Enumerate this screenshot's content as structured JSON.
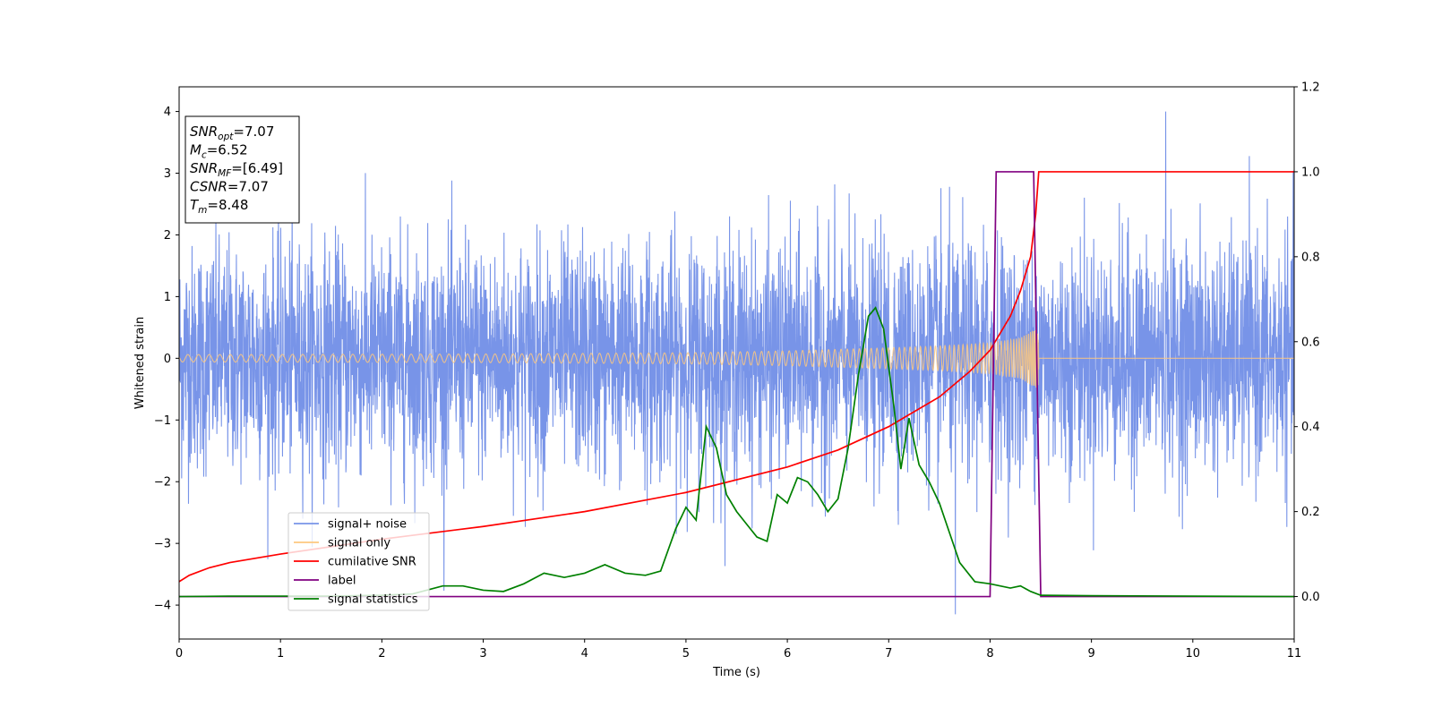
{
  "chart_data": {
    "type": "line",
    "title": "",
    "xlabel": "Time (s)",
    "ylabel": "Whitened strain",
    "xlim": [
      0,
      11
    ],
    "ylim": [
      -4.55,
      4.4
    ],
    "y2lim": [
      -0.1,
      1.2
    ],
    "x_ticks": [
      "0",
      "1",
      "2",
      "3",
      "4",
      "5",
      "6",
      "7",
      "8",
      "9",
      "10",
      "11"
    ],
    "y_ticks": [
      "−4",
      "−3",
      "−2",
      "−1",
      "0",
      "1",
      "2",
      "3",
      "4"
    ],
    "y2_ticks": [
      "0.0",
      "0.2",
      "0.4",
      "0.6",
      "0.8",
      "1.0",
      "1.2"
    ],
    "grid": false,
    "legend_position": "lower-left",
    "info_box": [
      {
        "sym": "SNR",
        "sub": "opt",
        "rest": "=7.07"
      },
      {
        "sym": "M",
        "sub": "c",
        "rest": "=6.52"
      },
      {
        "sym": "SNR",
        "sub": "MF",
        "rest": "=[6.49]"
      },
      {
        "sym": "CSNR",
        "sub": "",
        "rest": "=7.07"
      },
      {
        "sym": "T",
        "sub": "m",
        "rest": "=8.48"
      }
    ],
    "merger_time": 8.48,
    "noise_sigma": 1.0,
    "series": [
      {
        "name": "signal+ noise",
        "color": "#7894e8",
        "axis": "left",
        "style": "noise"
      },
      {
        "name": "signal only",
        "color": "#fdc87f",
        "axis": "left",
        "style": "chirp",
        "envelope": [
          [
            0,
            0.06
          ],
          [
            3,
            0.07
          ],
          [
            5,
            0.09
          ],
          [
            6,
            0.12
          ],
          [
            7,
            0.17
          ],
          [
            7.5,
            0.2
          ],
          [
            8,
            0.25
          ],
          [
            8.3,
            0.33
          ],
          [
            8.45,
            0.48
          ],
          [
            8.48,
            0.5
          ]
        ]
      },
      {
        "name": "cumilative SNR",
        "color": "#ff0000",
        "axis": "right",
        "points": [
          [
            0,
            0.035
          ],
          [
            0.1,
            0.05
          ],
          [
            0.3,
            0.068
          ],
          [
            0.5,
            0.08
          ],
          [
            1,
            0.1
          ],
          [
            2,
            0.135
          ],
          [
            3,
            0.165
          ],
          [
            4,
            0.2
          ],
          [
            5,
            0.245
          ],
          [
            6,
            0.305
          ],
          [
            6.5,
            0.345
          ],
          [
            7,
            0.4
          ],
          [
            7.5,
            0.47
          ],
          [
            7.8,
            0.53
          ],
          [
            8,
            0.58
          ],
          [
            8.2,
            0.66
          ],
          [
            8.3,
            0.72
          ],
          [
            8.4,
            0.8
          ],
          [
            8.45,
            0.9
          ],
          [
            8.48,
            1.0
          ],
          [
            11,
            1.0
          ]
        ]
      },
      {
        "name": "label",
        "color": "#800080",
        "axis": "right",
        "points": [
          [
            0,
            0
          ],
          [
            8.0,
            0
          ],
          [
            8.06,
            1.0
          ],
          [
            8.43,
            1.0
          ],
          [
            8.5,
            0
          ],
          [
            11,
            0
          ]
        ]
      },
      {
        "name": "signal statistics",
        "color": "#008000",
        "axis": "right",
        "points": [
          [
            0,
            0.0
          ],
          [
            0.5,
            0.001
          ],
          [
            1.0,
            0.001
          ],
          [
            1.5,
            0.001
          ],
          [
            2.0,
            0.003
          ],
          [
            2.3,
            0.006
          ],
          [
            2.6,
            0.025
          ],
          [
            2.8,
            0.025
          ],
          [
            3.0,
            0.015
          ],
          [
            3.2,
            0.012
          ],
          [
            3.4,
            0.03
          ],
          [
            3.6,
            0.055
          ],
          [
            3.8,
            0.045
          ],
          [
            4.0,
            0.055
          ],
          [
            4.2,
            0.075
          ],
          [
            4.4,
            0.055
          ],
          [
            4.6,
            0.05
          ],
          [
            4.75,
            0.06
          ],
          [
            4.9,
            0.16
          ],
          [
            5.0,
            0.21
          ],
          [
            5.1,
            0.18
          ],
          [
            5.2,
            0.4
          ],
          [
            5.3,
            0.35
          ],
          [
            5.4,
            0.24
          ],
          [
            5.5,
            0.2
          ],
          [
            5.6,
            0.17
          ],
          [
            5.7,
            0.14
          ],
          [
            5.8,
            0.13
          ],
          [
            5.9,
            0.24
          ],
          [
            6.0,
            0.22
          ],
          [
            6.1,
            0.28
          ],
          [
            6.2,
            0.27
          ],
          [
            6.3,
            0.24
          ],
          [
            6.4,
            0.2
          ],
          [
            6.5,
            0.23
          ],
          [
            6.6,
            0.35
          ],
          [
            6.7,
            0.52
          ],
          [
            6.8,
            0.66
          ],
          [
            6.87,
            0.68
          ],
          [
            6.95,
            0.63
          ],
          [
            7.05,
            0.45
          ],
          [
            7.12,
            0.3
          ],
          [
            7.2,
            0.42
          ],
          [
            7.3,
            0.31
          ],
          [
            7.4,
            0.27
          ],
          [
            7.5,
            0.22
          ],
          [
            7.6,
            0.15
          ],
          [
            7.7,
            0.08
          ],
          [
            7.85,
            0.035
          ],
          [
            8.0,
            0.03
          ],
          [
            8.2,
            0.02
          ],
          [
            8.3,
            0.025
          ],
          [
            8.4,
            0.012
          ],
          [
            8.5,
            0.003
          ],
          [
            9.0,
            0.002
          ],
          [
            11,
            0.0
          ]
        ]
      }
    ]
  }
}
